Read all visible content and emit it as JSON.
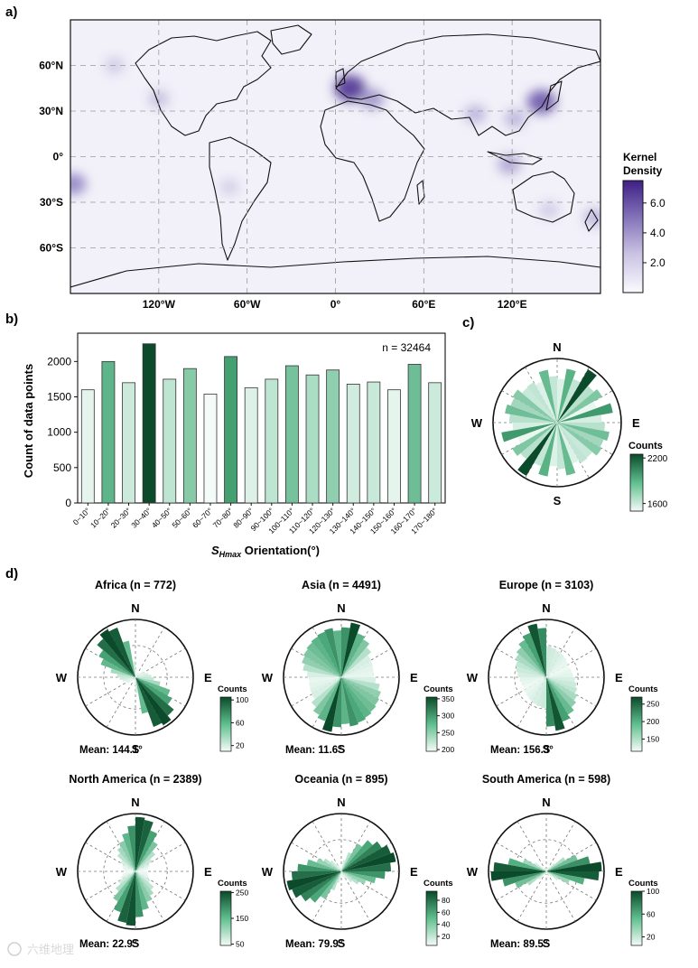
{
  "chart_data": [
    {
      "panel": "a)",
      "type": "heatmap",
      "lon_ticks": [
        "120°W",
        "60°W",
        "0°",
        "60°E",
        "120°E"
      ],
      "lat_ticks": [
        "60°N",
        "30°N",
        "0°",
        "30°S",
        "60°S"
      ],
      "colorbar_title_1": "Kernel",
      "colorbar_title_2": "Density",
      "colorbar_ticks": [
        {
          "label": "6.0",
          "value": 6.0
        },
        {
          "label": "4.0",
          "value": 4.0
        },
        {
          "label": "2.0",
          "value": 2.0
        }
      ],
      "colorbar_range": [
        0,
        7.5
      ],
      "hotspots": [
        {
          "lon": 10,
          "lat": 45,
          "value": 7.0
        },
        {
          "lon": 25,
          "lat": 38,
          "value": 4.0
        },
        {
          "lon": 140,
          "lat": 36,
          "value": 6.0
        },
        {
          "lon": 122,
          "lat": 25,
          "value": 3.0
        },
        {
          "lon": 95,
          "lat": 28,
          "value": 3.0
        },
        {
          "lon": 118,
          "lat": -5,
          "value": 3.5
        },
        {
          "lon": 176,
          "lat": -40,
          "value": 3.0
        },
        {
          "lon": -178,
          "lat": -18,
          "value": 4.5
        },
        {
          "lon": -120,
          "lat": 38,
          "value": 2.5
        },
        {
          "lon": -150,
          "lat": 60,
          "value": 2.0
        },
        {
          "lon": -72,
          "lat": -20,
          "value": 1.8
        },
        {
          "lon": 145,
          "lat": -35,
          "value": 2.0
        }
      ]
    },
    {
      "panel": "b)",
      "type": "bar",
      "categories": [
        "0~10°",
        "10~20°",
        "20~30°",
        "30~40°",
        "40~50°",
        "50~60°",
        "60~70°",
        "70~80°",
        "80~90°",
        "90~100°",
        "100~110°",
        "110~120°",
        "120~130°",
        "130~140°",
        "140~150°",
        "150~160°",
        "160~170°",
        "170~180°"
      ],
      "values": [
        1600,
        2000,
        1700,
        2250,
        1750,
        1900,
        1540,
        2070,
        1630,
        1750,
        1940,
        1810,
        1880,
        1680,
        1710,
        1600,
        1960,
        1700
      ],
      "ylabel": "Count of data points",
      "xlabel_prefix": "S",
      "xlabel_sub": "Hmax",
      "xlabel_suffix": " Orientation(°)",
      "yticks": [
        "0",
        "500",
        "1000",
        "1500",
        "2000"
      ],
      "ytick_values": [
        0,
        500,
        1000,
        1500,
        2000
      ],
      "ylim": [
        0,
        2400
      ],
      "annotation": "n = 32464"
    },
    {
      "panel": "c)",
      "type": "rose",
      "directions": [
        "N",
        "E",
        "S",
        "W"
      ],
      "bin_width": 10,
      "values": [
        1600,
        2000,
        1700,
        2250,
        1750,
        1900,
        1540,
        2070,
        1630,
        1750,
        1940,
        1810,
        1880,
        1680,
        1710,
        1600,
        1960,
        1700
      ],
      "colorbar_title": "Counts",
      "colorbar_ticks": [
        "2200",
        "1600"
      ],
      "colorbar_tick_values": [
        2200,
        1600
      ],
      "color_range": [
        1500,
        2250
      ]
    }
  ],
  "panel_d": {
    "label": "d)",
    "counts_label": "Counts",
    "regions": [
      {
        "title": "Africa (n = 772)",
        "mean": "Mean: 144.1°",
        "values": [
          15,
          10,
          8,
          10,
          12,
          18,
          20,
          25,
          30,
          35,
          48,
          70,
          80,
          95,
          105,
          100,
          70,
          30
        ],
        "range": [
          10,
          105
        ],
        "ticks": [
          "100",
          "60",
          "20"
        ],
        "tick_values": [
          100,
          60,
          20
        ]
      },
      {
        "title": "Asia (n = 4491)",
        "mean": "Mean: 11.6°",
        "values": [
          320,
          355,
          300,
          280,
          250,
          220,
          215,
          210,
          205,
          220,
          250,
          270,
          280,
          290,
          300,
          310,
          320,
          300
        ],
        "range": [
          195,
          355
        ],
        "ticks": [
          "350",
          "300",
          "250",
          "200"
        ],
        "tick_values": [
          350,
          300,
          250,
          200
        ]
      },
      {
        "title": "Europe (n = 3103)",
        "mean": "Mean: 156.3°",
        "values": [
          150,
          145,
          140,
          135,
          130,
          125,
          120,
          125,
          130,
          140,
          150,
          160,
          175,
          190,
          210,
          230,
          265,
          240
        ],
        "range": [
          115,
          270
        ],
        "ticks": [
          "250",
          "200",
          "150"
        ],
        "tick_values": [
          250,
          200,
          150
        ]
      },
      {
        "title": "North America (n = 2389)",
        "mean": "Mean: 22.9°",
        "values": [
          250,
          240,
          200,
          160,
          120,
          90,
          70,
          60,
          50,
          55,
          60,
          65,
          80,
          110,
          130,
          150,
          180,
          210
        ],
        "range": [
          45,
          255
        ],
        "ticks": [
          "250",
          "150",
          "50"
        ],
        "tick_values": [
          250,
          150,
          50
        ]
      },
      {
        "title": "Oceania (n = 895)",
        "mean": "Mean: 79.9°",
        "values": [
          10,
          20,
          35,
          55,
          70,
          80,
          90,
          95,
          85,
          75,
          60,
          45,
          35,
          25,
          15,
          12,
          10,
          8
        ],
        "range": [
          5,
          95
        ],
        "ticks": [
          "80",
          "60",
          "40",
          "20"
        ],
        "tick_values": [
          80,
          60,
          40,
          20
        ]
      },
      {
        "title": "South America (n = 598)",
        "mean": "Mean: 89.5°",
        "values": [
          5,
          6,
          8,
          10,
          20,
          40,
          60,
          80,
          100,
          95,
          70,
          45,
          25,
          12,
          8,
          6,
          5,
          5
        ],
        "range": [
          5,
          100
        ],
        "ticks": [
          "100",
          "60",
          "20"
        ],
        "tick_values": [
          100,
          60,
          20
        ]
      }
    ]
  },
  "watermark": "六维地理"
}
